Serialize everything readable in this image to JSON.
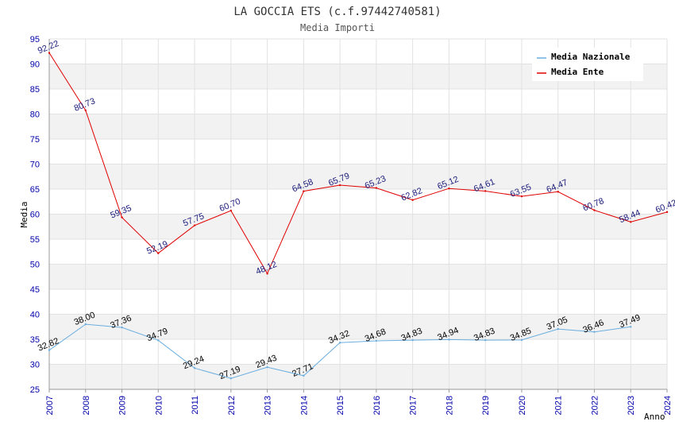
{
  "chart_data": {
    "type": "line",
    "title": "LA GOCCIA ETS (c.f.97442740581)",
    "subtitle": "Media Importi",
    "xlabel": "Anno",
    "ylabel": "Media",
    "ylim": [
      25,
      95
    ],
    "yticks": [
      25,
      30,
      35,
      40,
      45,
      50,
      55,
      60,
      65,
      70,
      75,
      80,
      85,
      90,
      95
    ],
    "x": [
      "2007",
      "2008",
      "2009",
      "2010",
      "2011",
      "2012",
      "2013",
      "2014",
      "2015",
      "2016",
      "2017",
      "2018",
      "2019",
      "2020",
      "2021",
      "2022",
      "2023",
      "2024"
    ],
    "legend_position": "top-right",
    "series": [
      {
        "name": "Media Nazionale",
        "color": "#6aaee0",
        "values": [
          32.82,
          38.0,
          37.36,
          34.79,
          29.24,
          27.19,
          29.43,
          27.71,
          34.32,
          34.68,
          34.83,
          34.94,
          34.83,
          34.85,
          37.05,
          36.46,
          37.49,
          null
        ],
        "labels": [
          "32.82",
          "38.00",
          "37.36",
          "34.79",
          "29.24",
          "27.19",
          "29.43",
          "27.71",
          "34.32",
          "34.68",
          "34.83",
          "34.94",
          "34.83",
          "34.85",
          "37.05",
          "36.46",
          "37.49",
          null
        ]
      },
      {
        "name": "Media Ente",
        "color": "#e00000",
        "values": [
          92.22,
          80.73,
          59.35,
          52.19,
          57.75,
          60.7,
          48.12,
          64.58,
          65.79,
          65.23,
          62.82,
          65.12,
          64.61,
          63.55,
          64.47,
          60.78,
          58.44,
          60.42
        ],
        "labels": [
          "92.22",
          "80.73",
          "59.35",
          "52.19",
          "57.75",
          "60.70",
          "48.12",
          "64.58",
          "65.79",
          "65.23",
          "62.82",
          "65.12",
          "64.61",
          "63.55",
          "64.47",
          "60.78",
          "58.44",
          "60.42"
        ]
      }
    ]
  }
}
